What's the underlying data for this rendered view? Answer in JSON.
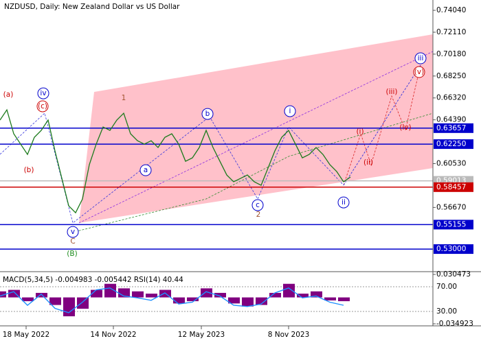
{
  "chart_data": {
    "type": "line",
    "title": "NZDUSD, Daily:  New Zealand Dollar vs US Dollar",
    "color": "#1b7a1b",
    "x": [
      0,
      10,
      20,
      30,
      40,
      50,
      60,
      70,
      80,
      90,
      100,
      110,
      120,
      130,
      140,
      150,
      160,
      170,
      180,
      190,
      200,
      210,
      220,
      230,
      240,
      250,
      260,
      270,
      280,
      290,
      300,
      310,
      320,
      330,
      340,
      350,
      360,
      370,
      380,
      390,
      400,
      410,
      420,
      430,
      440,
      450,
      460,
      470,
      480,
      490,
      500,
      510
    ],
    "values": [
      0.6437,
      0.6527,
      0.6316,
      0.6225,
      0.6134,
      0.6285,
      0.6346,
      0.6437,
      0.6165,
      0.5923,
      0.5681,
      0.562,
      0.5741,
      0.6044,
      0.6225,
      0.6376,
      0.6346,
      0.6437,
      0.6497,
      0.6316,
      0.6255,
      0.6225,
      0.6255,
      0.6195,
      0.6285,
      0.6316,
      0.6225,
      0.6074,
      0.6104,
      0.6195,
      0.6346,
      0.6195,
      0.6074,
      0.5953,
      0.5893,
      0.5923,
      0.5953,
      0.5893,
      0.5862,
      0.6013,
      0.6165,
      0.6285,
      0.6346,
      0.6225,
      0.6104,
      0.6134,
      0.6195,
      0.6134,
      0.6044,
      0.5983,
      0.5893,
      0.5935
    ],
    "xlim": [
      0,
      630
    ],
    "xticks": [
      {
        "value": 38,
        "label": "18 May 2022"
      },
      {
        "value": 165,
        "label": "14 Nov 2022"
      },
      {
        "value": 293,
        "label": "12 May 2023"
      },
      {
        "value": 420,
        "label": "8 Nov 2023"
      }
    ],
    "ylim": [
      0.5107,
      0.7495
    ],
    "yticks": [
      {
        "value": 0.7404,
        "label": "0.74040"
      },
      {
        "value": 0.7211,
        "label": "0.72110"
      },
      {
        "value": 0.7018,
        "label": "0.70180"
      },
      {
        "value": 0.6825,
        "label": "0.68250"
      },
      {
        "value": 0.6632,
        "label": "0.66320"
      },
      {
        "value": 0.6439,
        "label": "0.64390"
      },
      {
        "value": 0.6053,
        "label": "0.60530"
      },
      {
        "value": 0.5667,
        "label": "0.56670"
      }
    ],
    "levels": [
      {
        "value": 0.63657,
        "label": "0.63657",
        "color": "#0000cc"
      },
      {
        "value": 0.6225,
        "label": "0.62250",
        "color": "#0000cc"
      },
      {
        "value": 0.59013,
        "label": "0.59013",
        "color": "#bbbbbb"
      },
      {
        "value": 0.58457,
        "label": "0.58457",
        "color": "#cc0000"
      },
      {
        "value": 0.55155,
        "label": "0.55155",
        "color": "#0000cc"
      },
      {
        "value": 0.53,
        "label": "0.53000",
        "color": "#0000cc"
      }
    ],
    "annotations": [
      {
        "text": "(a)",
        "color": "#cc0000",
        "x": 12,
        "y": 0.666,
        "circle": false
      },
      {
        "text": "(c)",
        "color": "#cc0000",
        "x": 62,
        "y": 0.6558,
        "circle": true
      },
      {
        "text": "iv",
        "color": "#0000cc",
        "x": 63,
        "y": 0.6672,
        "circle": true
      },
      {
        "text": "(b)",
        "color": "#cc0000",
        "x": 42,
        "y": 0.5995,
        "circle": false
      },
      {
        "text": "v",
        "color": "#0000cc",
        "x": 106,
        "y": 0.5451,
        "circle": true
      },
      {
        "text": "C",
        "color": "#a0522d",
        "x": 106,
        "y": 0.5367,
        "circle": false
      },
      {
        "text": "(B)",
        "color": "#1b8a1b",
        "x": 105,
        "y": 0.5258,
        "circle": false
      },
      {
        "text": "1",
        "color": "#a0522d",
        "x": 180,
        "y": 0.663,
        "circle": false
      },
      {
        "text": "a",
        "color": "#0000cc",
        "x": 212,
        "y": 0.5995,
        "circle": true
      },
      {
        "text": "b",
        "color": "#0000cc",
        "x": 302,
        "y": 0.6491,
        "circle": true
      },
      {
        "text": "c",
        "color": "#0000cc",
        "x": 375,
        "y": 0.5687,
        "circle": true
      },
      {
        "text": "2",
        "color": "#a0522d",
        "x": 376,
        "y": 0.5602,
        "circle": false
      },
      {
        "text": "i",
        "color": "#0000cc",
        "x": 422,
        "y": 0.6515,
        "circle": true
      },
      {
        "text": "ii",
        "color": "#0000cc",
        "x": 500,
        "y": 0.5711,
        "circle": true
      },
      {
        "text": "(i)",
        "color": "#cc0000",
        "x": 524,
        "y": 0.6334,
        "circle": false
      },
      {
        "text": "(ii)",
        "color": "#cc0000",
        "x": 536,
        "y": 0.6062,
        "circle": false
      },
      {
        "text": "(iii)",
        "color": "#cc0000",
        "x": 570,
        "y": 0.6685,
        "circle": false
      },
      {
        "text": "(iv)",
        "color": "#cc0000",
        "x": 590,
        "y": 0.637,
        "circle": false
      },
      {
        "text": "(v)",
        "color": "#cc0000",
        "x": 610,
        "y": 0.686,
        "circle": true
      },
      {
        "text": "iii",
        "color": "#0000cc",
        "x": 612,
        "y": 0.6981,
        "circle": true
      }
    ],
    "indicator": {
      "title": "MACD(5,34,5) -0.004983 -0.005442 RSI(14) 40.44",
      "x": [
        0,
        20,
        40,
        60,
        80,
        100,
        120,
        140,
        160,
        180,
        200,
        220,
        240,
        260,
        280,
        300,
        320,
        340,
        360,
        380,
        400,
        420,
        440,
        460,
        480,
        500
      ],
      "macd": {
        "color": "#800080",
        "values": [
          0.008,
          0.01,
          -0.005,
          0.006,
          -0.01,
          -0.025,
          -0.015,
          0.01,
          0.018,
          0.012,
          0.008,
          0.005,
          0.01,
          -0.008,
          -0.005,
          0.012,
          0.006,
          -0.008,
          -0.012,
          -0.01,
          0.006,
          0.018,
          0.005,
          0.008,
          -0.004,
          -0.005
        ]
      },
      "rsi": {
        "color": "#1e90ff",
        "values": [
          55,
          62,
          40,
          58,
          35,
          28,
          45,
          65,
          68,
          55,
          52,
          48,
          60,
          42,
          45,
          62,
          55,
          40,
          38,
          42,
          60,
          68,
          52,
          55,
          45,
          40
        ]
      },
      "macd_lim": [
        -0.034923,
        0.030473
      ],
      "macd_ticks": [
        -0.034923,
        0.030473
      ],
      "rsi_lim": [
        10,
        90
      ],
      "rsi_ticks": [
        {
          "value": 70,
          "label": "70.00"
        },
        {
          "value": 30,
          "label": "30.00"
        }
      ]
    }
  }
}
